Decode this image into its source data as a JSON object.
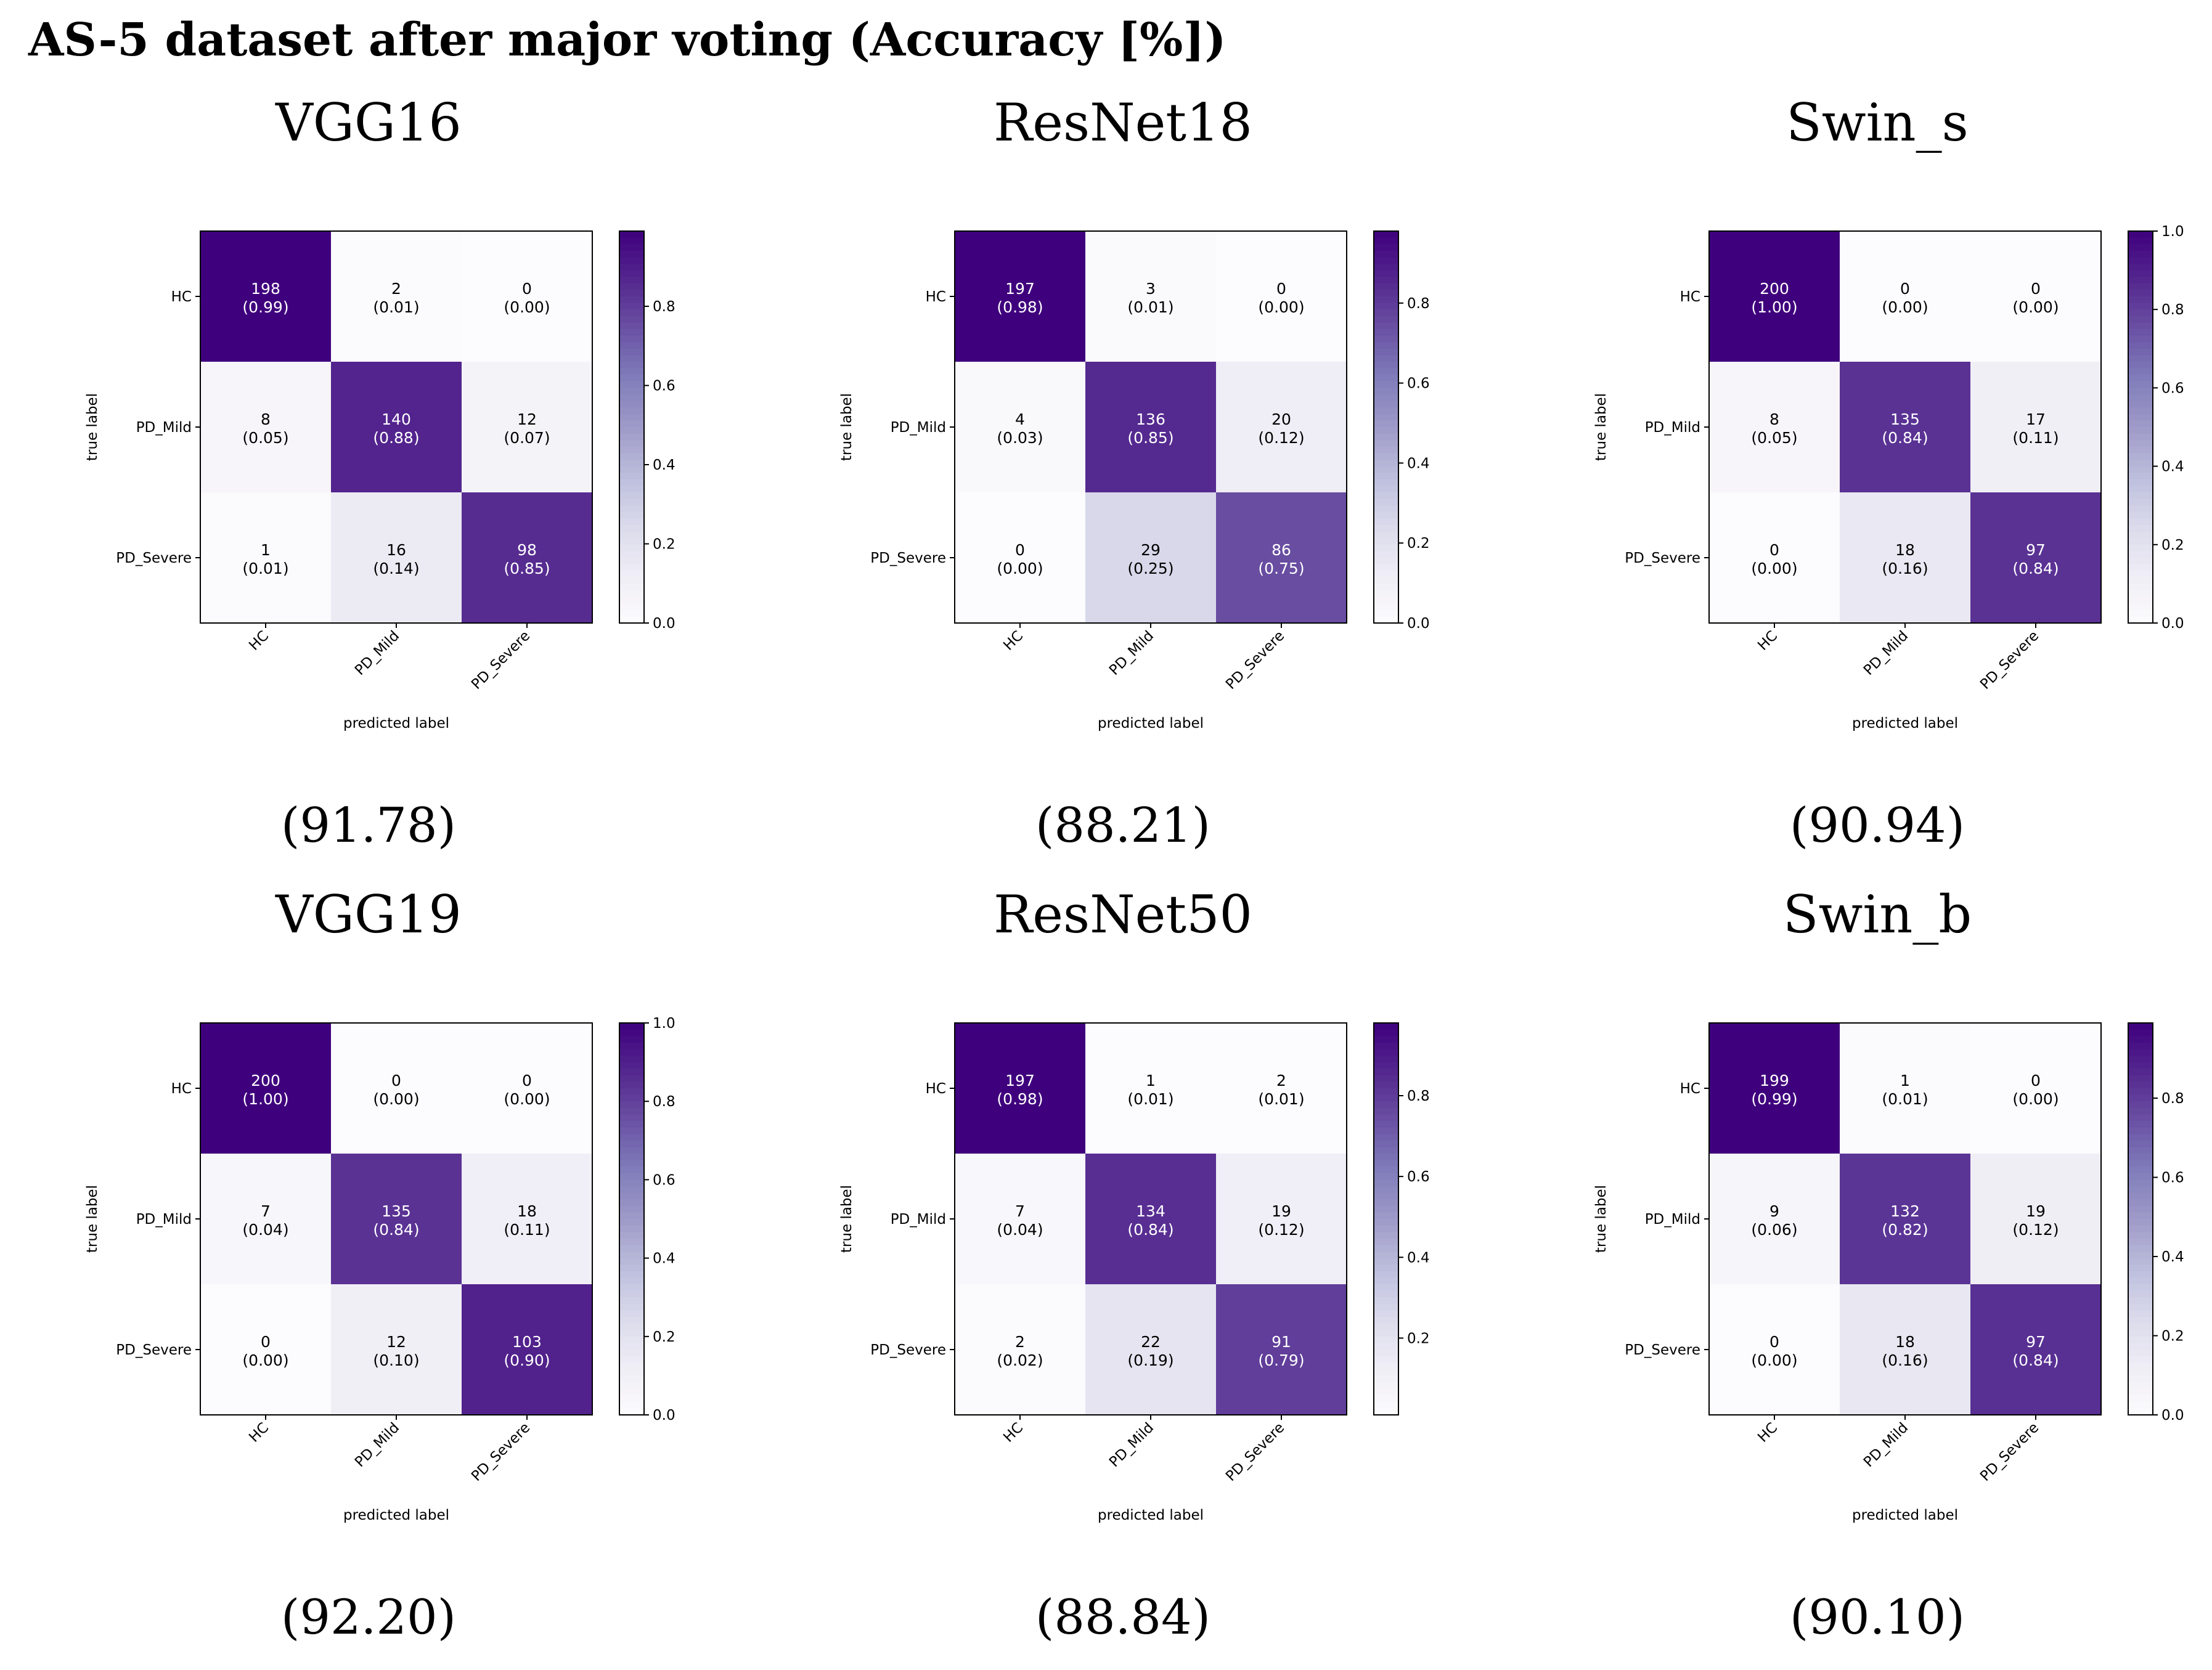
{
  "title": "AS-5 dataset after major voting (Accuracy [%])",
  "colors": {
    "cmap_low": "#fcfbfd",
    "cmap_high": "#3f007d",
    "frame": "#000000"
  },
  "chart_data": [
    {
      "type": "heatmap",
      "title": "VGG16",
      "accuracy": "(91.78)",
      "xlabel": "predicted label",
      "ylabel": "true label",
      "categories": [
        "HC",
        "PD_Mild",
        "PD_Severe"
      ],
      "counts": [
        [
          198,
          2,
          0
        ],
        [
          8,
          140,
          12
        ],
        [
          1,
          16,
          98
        ]
      ],
      "ratios": [
        [
          "0.99",
          "0.01",
          "0.00"
        ],
        [
          "0.05",
          "0.88",
          "0.07"
        ],
        [
          "0.01",
          "0.14",
          "0.85"
        ]
      ],
      "colorbar": {
        "vmin": 0.0,
        "vmax": 0.99,
        "ticks": [
          "0.0",
          "0.2",
          "0.4",
          "0.6",
          "0.8"
        ]
      }
    },
    {
      "type": "heatmap",
      "title": "ResNet18",
      "accuracy": "(88.21)",
      "xlabel": "predicted label",
      "ylabel": "true label",
      "categories": [
        "HC",
        "PD_Mild",
        "PD_Severe"
      ],
      "counts": [
        [
          197,
          3,
          0
        ],
        [
          4,
          136,
          20
        ],
        [
          0,
          29,
          86
        ]
      ],
      "ratios": [
        [
          "0.98",
          "0.01",
          "0.00"
        ],
        [
          "0.03",
          "0.85",
          "0.12"
        ],
        [
          "0.00",
          "0.25",
          "0.75"
        ]
      ],
      "colorbar": {
        "vmin": 0.0,
        "vmax": 0.98,
        "ticks": [
          "0.0",
          "0.2",
          "0.4",
          "0.6",
          "0.8"
        ]
      }
    },
    {
      "type": "heatmap",
      "title": "Swin_s",
      "accuracy": "(90.94)",
      "xlabel": "predicted label",
      "ylabel": "true label",
      "categories": [
        "HC",
        "PD_Mild",
        "PD_Severe"
      ],
      "counts": [
        [
          200,
          0,
          0
        ],
        [
          8,
          135,
          17
        ],
        [
          0,
          18,
          97
        ]
      ],
      "ratios": [
        [
          "1.00",
          "0.00",
          "0.00"
        ],
        [
          "0.05",
          "0.84",
          "0.11"
        ],
        [
          "0.00",
          "0.16",
          "0.84"
        ]
      ],
      "colorbar": {
        "vmin": 0.0,
        "vmax": 1.0,
        "ticks": [
          "0.0",
          "0.2",
          "0.4",
          "0.6",
          "0.8",
          "1.0"
        ]
      }
    },
    {
      "type": "heatmap",
      "title": "VGG19",
      "accuracy": "(92.20)",
      "xlabel": "predicted label",
      "ylabel": "true label",
      "categories": [
        "HC",
        "PD_Mild",
        "PD_Severe"
      ],
      "counts": [
        [
          200,
          0,
          0
        ],
        [
          7,
          135,
          18
        ],
        [
          0,
          12,
          103
        ]
      ],
      "ratios": [
        [
          "1.00",
          "0.00",
          "0.00"
        ],
        [
          "0.04",
          "0.84",
          "0.11"
        ],
        [
          "0.00",
          "0.10",
          "0.90"
        ]
      ],
      "colorbar": {
        "vmin": 0.0,
        "vmax": 1.0,
        "ticks": [
          "0.0",
          "0.2",
          "0.4",
          "0.6",
          "0.8",
          "1.0"
        ]
      }
    },
    {
      "type": "heatmap",
      "title": "ResNet50",
      "accuracy": "(88.84)",
      "xlabel": "predicted label",
      "ylabel": "true label",
      "categories": [
        "HC",
        "PD_Mild",
        "PD_Severe"
      ],
      "counts": [
        [
          197,
          1,
          2
        ],
        [
          7,
          134,
          19
        ],
        [
          2,
          22,
          91
        ]
      ],
      "ratios": [
        [
          "0.98",
          "0.01",
          "0.01"
        ],
        [
          "0.04",
          "0.84",
          "0.12"
        ],
        [
          "0.02",
          "0.19",
          "0.79"
        ]
      ],
      "colorbar": {
        "vmin": 0.01,
        "vmax": 0.98,
        "ticks": [
          "0.2",
          "0.4",
          "0.6",
          "0.8"
        ]
      }
    },
    {
      "type": "heatmap",
      "title": "Swin_b",
      "accuracy": "(90.10)",
      "xlabel": "predicted label",
      "ylabel": "true label",
      "categories": [
        "HC",
        "PD_Mild",
        "PD_Severe"
      ],
      "counts": [
        [
          199,
          1,
          0
        ],
        [
          9,
          132,
          19
        ],
        [
          0,
          18,
          97
        ]
      ],
      "ratios": [
        [
          "0.99",
          "0.01",
          "0.00"
        ],
        [
          "0.06",
          "0.82",
          "0.12"
        ],
        [
          "0.00",
          "0.16",
          "0.84"
        ]
      ],
      "colorbar": {
        "vmin": 0.0,
        "vmax": 0.99,
        "ticks": [
          "0.0",
          "0.2",
          "0.4",
          "0.6",
          "0.8"
        ]
      }
    }
  ]
}
